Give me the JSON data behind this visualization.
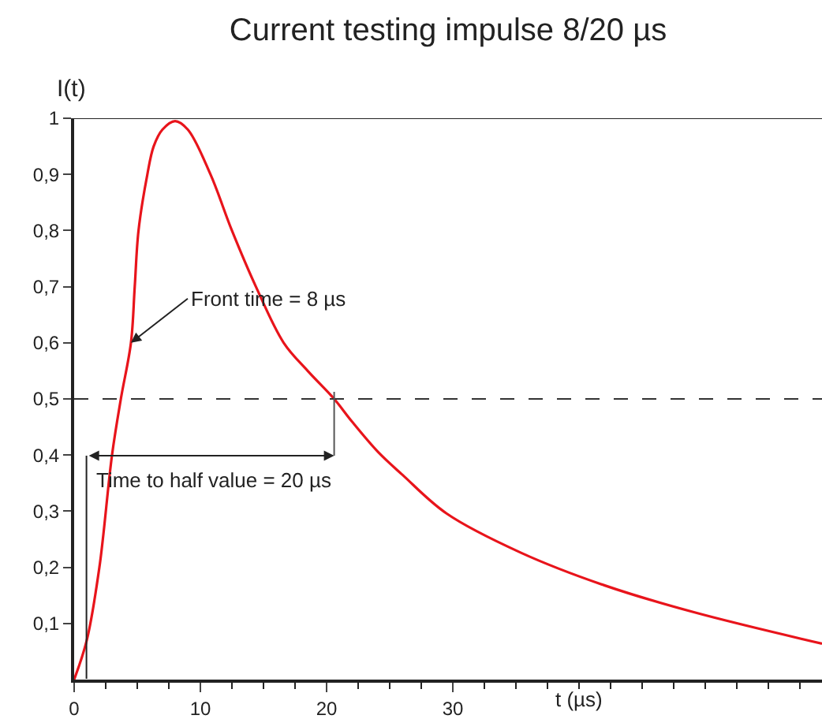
{
  "chart_data": {
    "type": "line",
    "title": "Current testing impulse 8/20 µs",
    "xlabel": "t (µs)",
    "ylabel": "I(t)",
    "x": [
      0,
      1,
      2,
      3,
      3.7,
      4.5,
      4.8,
      5.1,
      5.8,
      6.3,
      7,
      8,
      9,
      10.8,
      12.5,
      14.4,
      16.6,
      18.5,
      20.6,
      22,
      24.1,
      26,
      29.5,
      35.4,
      42,
      49.1,
      59.25
    ],
    "series": [
      {
        "color": "#e8141b",
        "values": [
          0,
          0.07,
          0.2,
          0.4,
          0.5,
          0.6,
          0.7,
          0.8,
          0.9,
          0.95,
          0.98,
          0.995,
          0.98,
          0.9,
          0.8,
          0.7,
          0.6,
          0.55,
          0.5,
          0.46,
          0.405,
          0.365,
          0.296,
          0.226,
          0.168,
          0.12,
          0.064
        ]
      }
    ],
    "xlim": [
      0,
      59.25
    ],
    "ylim": [
      0,
      1
    ],
    "xticks": [
      0,
      10,
      20,
      30,
      {
        "value": 40,
        "label": null
      },
      {
        "value": 50,
        "label": null
      },
      {
        "value": 2.5,
        "label": null
      },
      {
        "value": 5,
        "label": null
      },
      {
        "value": 7.5,
        "label": null
      },
      {
        "value": 12.5,
        "label": null
      },
      {
        "value": 15,
        "label": null
      },
      {
        "value": 17.5,
        "label": null
      },
      {
        "value": 22.5,
        "label": null
      },
      {
        "value": 25,
        "label": null
      },
      {
        "value": 27.5,
        "label": null
      },
      {
        "value": 32.5,
        "label": null
      },
      {
        "value": 35,
        "label": null
      },
      {
        "value": 37.5,
        "label": null
      },
      {
        "value": 42.5,
        "label": null
      },
      {
        "value": 45,
        "label": null
      },
      {
        "value": 47.5,
        "label": null
      },
      {
        "value": 52.5,
        "label": null
      },
      {
        "value": 55,
        "label": null
      },
      {
        "value": 57.5,
        "label": null
      }
    ],
    "yticks": [
      {
        "value": 0.1,
        "label": "0,1"
      },
      {
        "value": 0.2,
        "label": "0,2"
      },
      {
        "value": 0.3,
        "label": "0,3"
      },
      {
        "value": 0.4,
        "label": "0,4"
      },
      {
        "value": 0.5,
        "label": "0,5"
      },
      {
        "value": 0.6,
        "label": "0,6"
      },
      {
        "value": 0.7,
        "label": "0,7"
      },
      {
        "value": 0.8,
        "label": "0,8"
      },
      {
        "value": 0.9,
        "label": "0,9"
      },
      1
    ],
    "ref_lines": [
      {
        "axis": "y",
        "value": 0.5,
        "color": "#333333",
        "line_style": "dashed"
      }
    ],
    "annotations": [
      {
        "text": "Front time = 8 µs",
        "x": 4.5,
        "y": 0.6
      },
      {
        "text": "Time to half value = 20 µs",
        "x": 20.6,
        "y": 0.5
      }
    ],
    "grid": false,
    "legend": false,
    "marker": "none",
    "line_style": "solid"
  }
}
